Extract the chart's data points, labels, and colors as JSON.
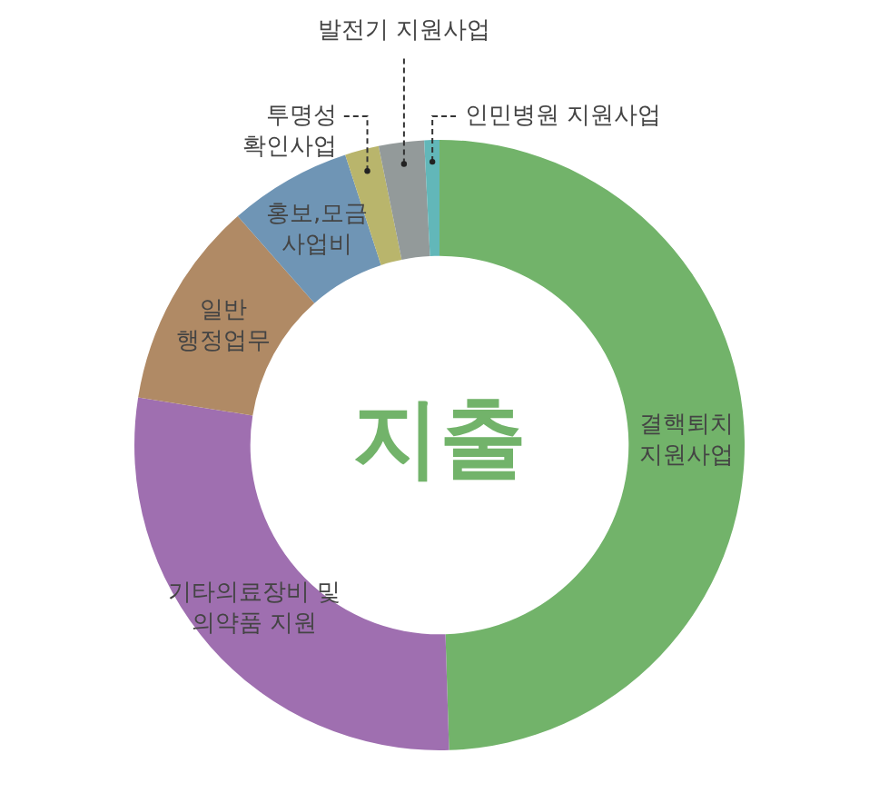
{
  "chart_data": {
    "type": "donut",
    "title": "지출",
    "categories": [
      "결핵퇴치\n지원사업",
      "기타의료장비 및\n의약품 지원",
      "일반\n행정업무",
      "홍보,모금\n사업비",
      "투명성\n확인사업",
      "발전기 지원사업",
      "인민병원 지원사업"
    ],
    "values": [
      49.5,
      28,
      11,
      6.5,
      1.8,
      2.4,
      0.8
    ],
    "colors": [
      "#72b36a",
      "#9f6fb0",
      "#b08a65",
      "#6f95b5",
      "#b9b56c",
      "#939a9a",
      "#62b7b9"
    ],
    "legend": false
  }
}
